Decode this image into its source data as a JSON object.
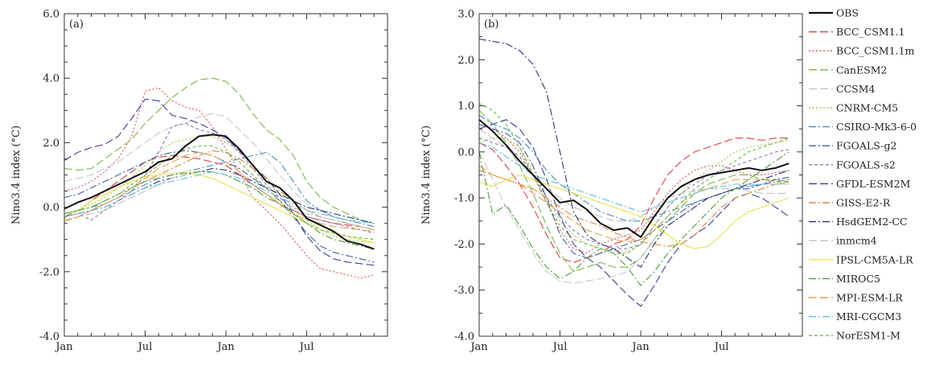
{
  "chart_data": {
    "type": "line",
    "x_ticks": [
      "Jan",
      "Jul",
      "Jan",
      "Jul"
    ],
    "legend": {
      "placement": "right"
    },
    "series": [
      {
        "name": "OBS",
        "color": "#111111",
        "dash": "solid",
        "width": 2
      },
      {
        "name": "BCC_CSM1.1",
        "color": "#e04040",
        "dash": "long-dash",
        "width": 1.1
      },
      {
        "name": "BCC_CSM1.1m",
        "color": "#e05050",
        "dash": "dot",
        "width": 1.1
      },
      {
        "name": "CanESM2",
        "color": "#7ab648",
        "dash": "long-dash",
        "width": 1.1
      },
      {
        "name": "CCSM4",
        "color": "#c8c8c8",
        "dash": "long-dash",
        "width": 1.1
      },
      {
        "name": "CNRM-CM5",
        "color": "#a8c84a",
        "dash": "dot",
        "width": 1.1
      },
      {
        "name": "CSIRO-Mk3-6-0",
        "color": "#4a8ec2",
        "dash": "dash-dot",
        "width": 1.1
      },
      {
        "name": "FGOALS-g2",
        "color": "#3a5fa8",
        "dash": "dash-dot",
        "width": 1.1
      },
      {
        "name": "FGOALS-s2",
        "color": "#8a78b8",
        "dash": "short-dash",
        "width": 1.1
      },
      {
        "name": "GFDL-ESM2M",
        "color": "#3a3e9e",
        "dash": "long-dash",
        "width": 1.1
      },
      {
        "name": "GISS-E2-R",
        "color": "#e08838",
        "dash": "dash-dot",
        "width": 1.1
      },
      {
        "name": "HsdGEM2-CC",
        "color": "#2a2e7a",
        "dash": "dash-dot",
        "width": 1.1
      },
      {
        "name": "inmcm4",
        "color": "#c0c0c0",
        "dash": "long-dash",
        "width": 1.1
      },
      {
        "name": "IPSL-CM5A-LR",
        "color": "#e8e050",
        "dash": "solid",
        "width": 1.1
      },
      {
        "name": "MIROC5",
        "color": "#4a9e3a",
        "dash": "dash-dot",
        "width": 1.1
      },
      {
        "name": "MPI-ESM-LR",
        "color": "#e8a050",
        "dash": "long-dash",
        "width": 1.1
      },
      {
        "name": "MRI-CGCM3",
        "color": "#58c0e0",
        "dash": "dash-dot",
        "width": 1.1
      },
      {
        "name": "NorESM1-M",
        "color": "#6ab848",
        "dash": "short-dash",
        "width": 1.1
      }
    ],
    "panels": [
      {
        "label": "(a)",
        "ylabel": "Nino3.4 index (°C)",
        "ylim": [
          -4.0,
          6.0
        ],
        "y_ticks": [
          "-4.0",
          "-2.0",
          "0.0",
          "2.0",
          "4.0",
          "6.0"
        ],
        "y_tick_values": [
          -4,
          -2,
          0,
          2,
          4,
          6
        ],
        "values": [
          [
            -0.05,
            0.15,
            0.3,
            0.5,
            0.7,
            0.9,
            1.1,
            1.4,
            1.5,
            1.9,
            2.2,
            2.25,
            2.2,
            1.8,
            1.3,
            0.8,
            0.6,
            0.2,
            -0.35,
            -0.55,
            -0.75,
            -1.05,
            -1.15,
            -1.3
          ],
          [
            -0.3,
            -0.1,
            0.2,
            0.5,
            0.8,
            1.1,
            1.4,
            1.55,
            1.6,
            1.55,
            1.5,
            1.4,
            1.3,
            1.0,
            0.7,
            0.4,
            0.1,
            -0.1,
            -0.3,
            -0.4,
            -0.5,
            -0.55,
            -0.6,
            -0.7
          ],
          [
            0.5,
            0.6,
            0.8,
            1.1,
            1.5,
            2.2,
            3.6,
            3.7,
            3.3,
            3.1,
            3.0,
            2.5,
            1.8,
            1.1,
            0.3,
            -0.1,
            -0.5,
            -1.0,
            -1.5,
            -1.9,
            -2.0,
            -2.1,
            -2.2,
            -2.1
          ],
          [
            1.2,
            1.15,
            1.2,
            1.5,
            1.8,
            2.1,
            2.6,
            3.0,
            3.4,
            3.7,
            3.95,
            4.0,
            3.9,
            3.5,
            2.9,
            2.4,
            2.1,
            1.6,
            0.8,
            0.3,
            0.0,
            -0.2,
            -0.4,
            -0.5
          ],
          [
            0.8,
            0.9,
            1.0,
            1.2,
            1.4,
            1.7,
            2.0,
            2.3,
            2.5,
            2.6,
            2.8,
            2.9,
            2.8,
            2.4,
            2.0,
            1.5,
            1.0,
            0.5,
            0.1,
            -0.1,
            -0.3,
            -0.5,
            -0.6,
            -0.7
          ],
          [
            -0.2,
            -0.1,
            0.1,
            0.3,
            0.6,
            0.9,
            1.3,
            1.7,
            2.0,
            2.1,
            2.2,
            2.2,
            2.0,
            1.7,
            1.3,
            0.8,
            0.4,
            0.0,
            -0.4,
            -0.7,
            -0.9,
            -1.0,
            -1.05,
            -1.1
          ],
          [
            -0.2,
            -0.1,
            0.0,
            0.1,
            0.3,
            0.5,
            0.7,
            0.9,
            1.0,
            1.1,
            1.2,
            1.3,
            1.4,
            1.5,
            1.6,
            1.7,
            1.4,
            0.8,
            0.2,
            -0.1,
            -0.3,
            -0.4,
            -0.5,
            -0.6
          ],
          [
            0.3,
            0.4,
            0.6,
            0.8,
            1.0,
            1.2,
            1.4,
            1.6,
            1.7,
            1.75,
            1.7,
            1.6,
            1.4,
            1.2,
            0.9,
            0.6,
            0.2,
            -0.3,
            -0.8,
            -1.2,
            -1.4,
            -1.5,
            -1.6,
            -1.7
          ],
          [
            -0.3,
            -0.2,
            -0.4,
            -0.1,
            0.2,
            0.5,
            1.0,
            1.7,
            2.5,
            2.6,
            2.4,
            2.3,
            2.1,
            1.7,
            1.2,
            0.7,
            0.3,
            -0.1,
            -0.3,
            -0.4,
            -0.5,
            -0.6,
            -0.7,
            -0.8
          ],
          [
            1.45,
            1.7,
            1.85,
            1.95,
            2.2,
            2.75,
            3.35,
            3.3,
            2.85,
            2.75,
            2.6,
            2.4,
            2.15,
            1.75,
            1.3,
            0.9,
            0.4,
            -0.2,
            -0.9,
            -1.35,
            -1.6,
            -1.7,
            -1.75,
            -1.8
          ],
          [
            -0.4,
            -0.3,
            -0.1,
            0.1,
            0.3,
            0.6,
            0.8,
            1.0,
            1.2,
            1.4,
            1.6,
            1.75,
            1.7,
            1.5,
            1.2,
            0.9,
            0.5,
            0.2,
            -0.1,
            -0.3,
            -0.4,
            -0.5,
            -0.6,
            -0.7
          ],
          [
            -0.3,
            -0.2,
            -0.1,
            0.0,
            0.2,
            0.4,
            0.6,
            0.8,
            0.9,
            1.0,
            1.1,
            1.2,
            1.15,
            1.0,
            0.8,
            0.6,
            0.4,
            0.2,
            0.0,
            -0.1,
            -0.2,
            -0.3,
            -0.4,
            -0.5
          ],
          [
            -0.4,
            -0.3,
            -0.2,
            -0.1,
            0.1,
            0.3,
            0.5,
            0.7,
            0.9,
            1.0,
            1.1,
            1.1,
            1.0,
            0.8,
            0.6,
            0.4,
            0.2,
            0.0,
            -0.2,
            -0.3,
            -0.4,
            -0.5,
            -0.6,
            -0.7
          ],
          [
            -0.35,
            -0.1,
            0.2,
            0.4,
            0.6,
            0.8,
            0.95,
            1.0,
            1.05,
            1.1,
            1.0,
            0.9,
            0.7,
            0.5,
            0.3,
            0.1,
            -0.1,
            -0.3,
            -0.5,
            -0.7,
            -0.8,
            -0.9,
            -1.0,
            -1.1
          ],
          [
            -0.2,
            -0.1,
            0.0,
            0.2,
            0.4,
            0.6,
            0.8,
            0.9,
            1.0,
            1.05,
            1.1,
            1.1,
            1.0,
            0.8,
            0.6,
            0.3,
            0.1,
            -0.2,
            -0.5,
            -0.8,
            -1.0,
            -1.1,
            -1.2,
            -1.3
          ],
          [
            -0.45,
            -0.3,
            -0.1,
            0.1,
            0.3,
            0.6,
            0.9,
            1.2,
            1.4,
            1.6,
            1.7,
            1.6,
            1.4,
            1.1,
            0.7,
            0.4,
            0.1,
            -0.2,
            -0.4,
            -0.5,
            -0.6,
            -0.65,
            -0.7,
            -0.75
          ],
          [
            -0.3,
            -0.2,
            -0.1,
            0.0,
            0.2,
            0.4,
            0.6,
            0.7,
            0.8,
            0.9,
            1.0,
            1.1,
            1.0,
            0.9,
            0.7,
            0.5,
            0.3,
            0.1,
            -0.1,
            -0.2,
            -0.3,
            -0.4,
            -0.45,
            -0.5
          ],
          [
            -0.2,
            -0.1,
            0.0,
            0.2,
            0.4,
            0.7,
            1.0,
            1.3,
            1.6,
            1.8,
            1.9,
            1.9,
            1.7,
            1.4,
            1.0,
            0.6,
            0.2,
            -0.2,
            -0.5,
            -0.7,
            -0.8,
            -0.9,
            -0.95,
            -1.0
          ]
        ]
      },
      {
        "label": "(b)",
        "ylabel": "Nino3.4 index (°C)",
        "ylim": [
          -4.0,
          3.0
        ],
        "y_ticks": [
          "-4.0",
          "-3.0",
          "-2.0",
          "-1.0",
          "0.0",
          "1.0",
          "2.0",
          "3.0"
        ],
        "y_tick_values": [
          -4,
          -3,
          -2,
          -1,
          0,
          1,
          2,
          3
        ],
        "values": [
          [
            0.7,
            0.45,
            0.15,
            -0.2,
            -0.5,
            -0.8,
            -1.1,
            -1.05,
            -1.25,
            -1.55,
            -1.7,
            -1.65,
            -1.85,
            -1.4,
            -1.0,
            -0.75,
            -0.6,
            -0.5,
            -0.45,
            -0.4,
            -0.35,
            -0.4,
            -0.35,
            -0.25
          ],
          [
            0.2,
            0.05,
            -0.3,
            -0.7,
            -1.2,
            -1.8,
            -2.3,
            -2.4,
            -2.3,
            -2.2,
            -2.0,
            -1.9,
            -1.6,
            -1.0,
            -0.5,
            -0.2,
            0.0,
            0.1,
            0.2,
            0.3,
            0.3,
            0.25,
            0.3,
            0.3
          ],
          [
            0.6,
            0.5,
            0.3,
            0.0,
            -0.5,
            -1.1,
            -1.7,
            -2.1,
            -2.2,
            -2.0,
            -1.9,
            -1.8,
            -1.7,
            -1.3,
            -0.9,
            -0.6,
            -0.4,
            -0.3,
            -0.3,
            -0.4,
            -0.5,
            -0.5,
            -0.45,
            -0.4
          ],
          [
            0.9,
            0.6,
            0.2,
            -0.3,
            -0.9,
            -1.6,
            -2.2,
            -2.6,
            -2.5,
            -2.4,
            -2.5,
            -2.5,
            -2.3,
            -1.9,
            -1.5,
            -1.2,
            -0.9,
            -0.7,
            -0.6,
            -0.5,
            -0.5,
            -0.6,
            -0.6,
            -0.65
          ],
          [
            0.0,
            -0.6,
            -1.2,
            -1.7,
            -2.2,
            -2.6,
            -2.8,
            -2.85,
            -2.8,
            -2.75,
            -2.7,
            -2.6,
            -2.3,
            -1.9,
            -1.6,
            -1.4,
            -1.2,
            -1.0,
            -0.9,
            -0.8,
            -0.75,
            -0.7,
            -0.7,
            -0.7
          ],
          [
            0.2,
            0.3,
            0.3,
            0.1,
            -0.4,
            -1.0,
            -1.5,
            -1.8,
            -2.0,
            -2.1,
            -2.15,
            -2.15,
            -2.0,
            -1.6,
            -1.2,
            -0.9,
            -0.6,
            -0.4,
            -0.2,
            0.0,
            0.1,
            0.15,
            0.2,
            0.25
          ],
          [
            0.8,
            0.6,
            0.5,
            0.3,
            0.0,
            -0.4,
            -0.7,
            -0.9,
            -1.1,
            -1.3,
            -1.4,
            -1.5,
            -1.5,
            -1.4,
            -1.3,
            -1.2,
            -1.1,
            -1.0,
            -0.9,
            -0.8,
            -0.75,
            -0.7,
            -0.65,
            -0.6
          ],
          [
            0.6,
            0.5,
            0.4,
            0.2,
            -0.3,
            -1.0,
            -1.8,
            -2.2,
            -2.3,
            -2.2,
            -2.1,
            -2.0,
            -1.9,
            -1.7,
            -1.5,
            -1.3,
            -1.1,
            -1.0,
            -0.9,
            -0.8,
            -0.8,
            -0.7,
            -0.6,
            -0.55
          ],
          [
            0.3,
            0.2,
            0.1,
            -0.1,
            -0.5,
            -1.0,
            -1.4,
            -1.7,
            -1.9,
            -2.0,
            -2.1,
            -2.1,
            -2.0,
            -1.6,
            -1.2,
            -0.9,
            -0.7,
            -0.5,
            -0.4,
            -0.3,
            -0.2,
            -0.1,
            0.0,
            0.05
          ],
          [
            0.5,
            0.6,
            0.7,
            0.5,
            0.1,
            -0.6,
            -1.4,
            -2.0,
            -2.3,
            -2.5,
            -2.8,
            -3.1,
            -3.35,
            -2.9,
            -2.4,
            -2.0,
            -1.8,
            -1.6,
            -1.3,
            -1.0,
            -0.9,
            -1.0,
            -1.2,
            -1.4
          ],
          [
            -0.4,
            -0.5,
            -0.6,
            -0.7,
            -0.8,
            -1.0,
            -1.2,
            -1.4,
            -1.5,
            -1.6,
            -1.75,
            -1.85,
            -1.95,
            -2.0,
            -2.05,
            -2.0,
            -1.8,
            -1.5,
            -1.2,
            -1.0,
            -0.9,
            -0.8,
            -0.7,
            -0.65
          ],
          [
            2.45,
            2.4,
            2.35,
            2.2,
            1.9,
            1.3,
            0.0,
            -1.3,
            -1.8,
            -2.0,
            -2.1,
            -2.3,
            -2.5,
            -2.0,
            -1.6,
            -1.4,
            -1.2,
            -1.0,
            -0.9,
            -0.8,
            -0.7,
            -0.6,
            -0.5,
            -0.4
          ],
          [
            0.5,
            0.3,
            0.1,
            -0.2,
            -0.5,
            -0.8,
            -1.0,
            -1.2,
            -1.3,
            -1.4,
            -1.5,
            -1.5,
            -1.4,
            -1.2,
            -1.0,
            -0.9,
            -0.85,
            -0.8,
            -0.8,
            -0.8,
            -0.85,
            -0.9,
            -0.9,
            -0.9
          ],
          [
            -0.65,
            -0.75,
            -0.6,
            -0.5,
            -0.6,
            -0.7,
            -0.8,
            -0.9,
            -1.0,
            -1.1,
            -1.2,
            -1.3,
            -1.4,
            -1.6,
            -1.8,
            -2.0,
            -2.1,
            -2.05,
            -1.8,
            -1.5,
            -1.3,
            -1.2,
            -1.1,
            -1.0
          ],
          [
            0.0,
            -1.35,
            -1.15,
            -1.6,
            -2.1,
            -2.5,
            -2.75,
            -2.6,
            -2.3,
            -2.1,
            -2.2,
            -2.5,
            -2.9,
            -2.6,
            -2.2,
            -1.9,
            -1.6,
            -1.3,
            -1.0,
            -0.8,
            -0.6,
            -0.4,
            -0.2,
            0.0
          ],
          [
            -0.3,
            -0.5,
            -0.6,
            -0.7,
            -0.9,
            -1.1,
            -1.3,
            -1.5,
            -1.7,
            -1.8,
            -1.9,
            -1.95,
            -1.9,
            -1.7,
            -1.4,
            -1.1,
            -0.9,
            -0.8,
            -0.7,
            -0.6,
            -0.6,
            -0.6,
            -0.65,
            -0.7
          ],
          [
            0.2,
            0.1,
            -0.1,
            -0.3,
            -0.5,
            -0.6,
            -0.7,
            -0.8,
            -0.9,
            -1.0,
            -1.1,
            -1.2,
            -1.3,
            -1.2,
            -1.1,
            -1.0,
            -0.9,
            -0.8,
            -0.75,
            -0.7,
            -0.7,
            -0.7,
            -0.7,
            -0.7
          ],
          [
            1.05,
            0.9,
            0.6,
            0.1,
            -0.5,
            -1.1,
            -1.6,
            -1.9,
            -2.0,
            -2.1,
            -2.2,
            -2.2,
            -2.0,
            -1.7,
            -1.4,
            -1.1,
            -0.8,
            -0.6,
            -0.4,
            -0.2,
            0.0,
            0.1,
            0.2,
            0.3
          ]
        ]
      }
    ]
  }
}
